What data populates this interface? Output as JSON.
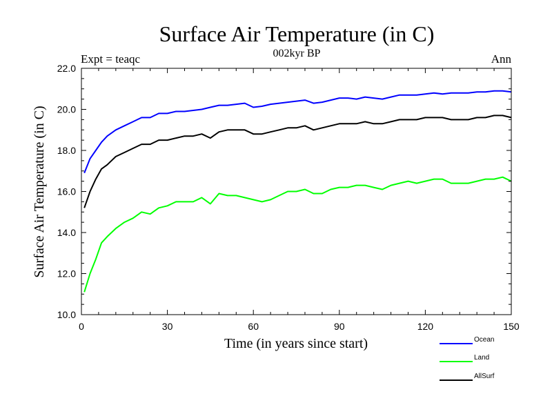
{
  "chart_data": {
    "type": "line",
    "title": "Surface Air Temperature (in C)",
    "subtitle": "002kyr BP",
    "left_label": "Expt = teaqc",
    "right_label": "Ann",
    "xlabel": "Time (in years since start)",
    "ylabel": "Surface Air Temperature (in C)",
    "xlim": [
      0,
      150
    ],
    "ylim": [
      10.0,
      22.0
    ],
    "xticks": [
      0,
      30,
      60,
      90,
      120,
      150
    ],
    "yticks": [
      10.0,
      12.0,
      14.0,
      16.0,
      18.0,
      20.0,
      22.0
    ],
    "xtick_labels": [
      "0",
      "30",
      "60",
      "90",
      "120",
      "150"
    ],
    "ytick_labels": [
      "10.0",
      "12.0",
      "14.0",
      "16.0",
      "18.0",
      "20.0",
      "22.0"
    ],
    "legend_position": "bottom-right, below plot",
    "grid": false,
    "series": [
      {
        "name": "Ocean",
        "color": "#0000ff",
        "x": [
          1,
          3,
          5,
          7,
          9,
          12,
          15,
          18,
          21,
          24,
          27,
          30,
          33,
          36,
          39,
          42,
          45,
          48,
          51,
          54,
          57,
          60,
          63,
          66,
          69,
          72,
          75,
          78,
          81,
          84,
          87,
          90,
          93,
          96,
          99,
          102,
          105,
          108,
          111,
          114,
          117,
          120,
          123,
          126,
          129,
          132,
          135,
          138,
          141,
          144,
          147,
          150
        ],
        "values": [
          16.9,
          17.6,
          18.0,
          18.4,
          18.7,
          19.0,
          19.2,
          19.4,
          19.6,
          19.6,
          19.8,
          19.8,
          19.9,
          19.9,
          19.95,
          20.0,
          20.1,
          20.2,
          20.2,
          20.25,
          20.3,
          20.1,
          20.15,
          20.25,
          20.3,
          20.35,
          20.4,
          20.45,
          20.3,
          20.35,
          20.45,
          20.55,
          20.55,
          20.5,
          20.6,
          20.55,
          20.5,
          20.6,
          20.7,
          20.7,
          20.7,
          20.75,
          20.8,
          20.75,
          20.8,
          20.8,
          20.8,
          20.85,
          20.85,
          20.9,
          20.9,
          20.85
        ]
      },
      {
        "name": "Land",
        "color": "#00ff00",
        "x": [
          1,
          3,
          5,
          7,
          9,
          12,
          15,
          18,
          21,
          24,
          27,
          30,
          33,
          36,
          39,
          42,
          45,
          48,
          51,
          54,
          57,
          60,
          63,
          66,
          69,
          72,
          75,
          78,
          81,
          84,
          87,
          90,
          93,
          96,
          99,
          102,
          105,
          108,
          111,
          114,
          117,
          120,
          123,
          126,
          129,
          132,
          135,
          138,
          141,
          144,
          147,
          150
        ],
        "values": [
          11.1,
          12.0,
          12.7,
          13.5,
          13.8,
          14.2,
          14.5,
          14.7,
          15.0,
          14.9,
          15.2,
          15.3,
          15.5,
          15.5,
          15.5,
          15.7,
          15.4,
          15.9,
          15.8,
          15.8,
          15.7,
          15.6,
          15.5,
          15.6,
          15.8,
          16.0,
          16.0,
          16.1,
          15.9,
          15.9,
          16.1,
          16.2,
          16.2,
          16.3,
          16.3,
          16.2,
          16.1,
          16.3,
          16.4,
          16.5,
          16.4,
          16.5,
          16.6,
          16.6,
          16.4,
          16.4,
          16.4,
          16.5,
          16.6,
          16.6,
          16.7,
          16.5
        ]
      },
      {
        "name": "AllSurf",
        "color": "#000000",
        "x": [
          1,
          3,
          5,
          7,
          9,
          12,
          15,
          18,
          21,
          24,
          27,
          30,
          33,
          36,
          39,
          42,
          45,
          48,
          51,
          54,
          57,
          60,
          63,
          66,
          69,
          72,
          75,
          78,
          81,
          84,
          87,
          90,
          93,
          96,
          99,
          102,
          105,
          108,
          111,
          114,
          117,
          120,
          123,
          126,
          129,
          132,
          135,
          138,
          141,
          144,
          147,
          150
        ],
        "values": [
          15.2,
          16.0,
          16.6,
          17.1,
          17.3,
          17.7,
          17.9,
          18.1,
          18.3,
          18.3,
          18.5,
          18.5,
          18.6,
          18.7,
          18.7,
          18.8,
          18.6,
          18.9,
          19.0,
          19.0,
          19.0,
          18.8,
          18.8,
          18.9,
          19.0,
          19.1,
          19.1,
          19.2,
          19.0,
          19.1,
          19.2,
          19.3,
          19.3,
          19.3,
          19.4,
          19.3,
          19.3,
          19.4,
          19.5,
          19.5,
          19.5,
          19.6,
          19.6,
          19.6,
          19.5,
          19.5,
          19.5,
          19.6,
          19.6,
          19.7,
          19.7,
          19.6
        ]
      }
    ]
  }
}
